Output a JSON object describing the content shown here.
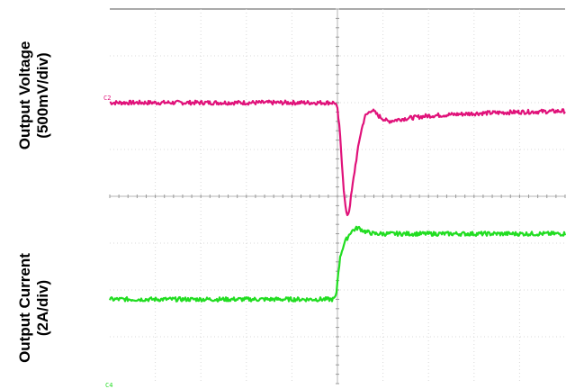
{
  "chart_data": {
    "type": "line",
    "title": "",
    "ylabels": [
      {
        "line1": "Output Voltage",
        "line2": "(500mV/div)"
      },
      {
        "line1": "Output Current",
        "line2": "(2A/div)"
      }
    ],
    "grid": {
      "x_divisions": 10,
      "y_divisions": 8,
      "minor_ticks_per_div": 5,
      "grid_on": true
    },
    "x_range_div": [
      0,
      10
    ],
    "y_range_div": [
      0,
      8
    ],
    "channel_markers": [
      "C2",
      "C4"
    ],
    "series": [
      {
        "channel": "C2",
        "color": "#e0127a",
        "unit_per_div": "500mV",
        "points_div": [
          [
            0,
            6.0
          ],
          [
            4.95,
            6.0
          ],
          [
            5.0,
            5.85
          ],
          [
            5.05,
            5.4
          ],
          [
            5.1,
            4.7
          ],
          [
            5.15,
            4.0
          ],
          [
            5.2,
            3.6
          ],
          [
            5.25,
            3.65
          ],
          [
            5.3,
            4.0
          ],
          [
            5.4,
            4.7
          ],
          [
            5.5,
            5.3
          ],
          [
            5.6,
            5.7
          ],
          [
            5.75,
            5.85
          ],
          [
            5.9,
            5.72
          ],
          [
            6.1,
            5.6
          ],
          [
            6.4,
            5.65
          ],
          [
            7.0,
            5.72
          ],
          [
            8.0,
            5.77
          ],
          [
            9.0,
            5.8
          ],
          [
            10.0,
            5.82
          ]
        ]
      },
      {
        "channel": "C4",
        "color": "#22dd22",
        "unit_per_div": "2A",
        "points_div": [
          [
            0,
            1.8
          ],
          [
            4.9,
            1.8
          ],
          [
            4.97,
            1.85
          ],
          [
            5.02,
            2.4
          ],
          [
            5.07,
            2.75
          ],
          [
            5.15,
            3.0
          ],
          [
            5.3,
            3.25
          ],
          [
            5.45,
            3.33
          ],
          [
            5.6,
            3.25
          ],
          [
            5.8,
            3.2
          ],
          [
            7.0,
            3.2
          ],
          [
            10.0,
            3.2
          ]
        ]
      }
    ]
  }
}
